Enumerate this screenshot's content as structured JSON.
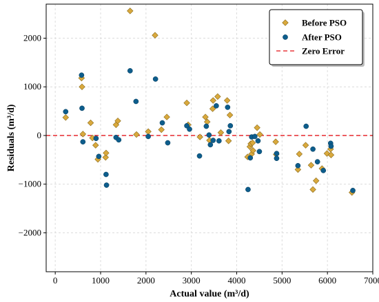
{
  "chart_data": {
    "type": "scatter",
    "title": "",
    "xlabel": "Actual value (m³/d)",
    "ylabel": "Residuals (m³/d)",
    "xlim": [
      -200,
      7000
    ],
    "ylim": [
      -2800,
      2700
    ],
    "xticks": [
      0,
      1000,
      2000,
      3000,
      4000,
      5000,
      6000,
      7000
    ],
    "yticks": [
      -2000,
      -1000,
      0,
      1000,
      2000
    ],
    "grid": true,
    "legend_position": "top-right",
    "colors": {
      "before": "#d9a93d",
      "before_edge": "#8a6a1a",
      "after": "#0d5d8c",
      "after_edge": "#073a58",
      "zero_line": "#e8383d"
    },
    "series": [
      {
        "name": "Before PSO",
        "marker": "diamond",
        "points": [
          [
            230,
            370
          ],
          [
            580,
            1180
          ],
          [
            590,
            1000
          ],
          [
            610,
            30
          ],
          [
            780,
            260
          ],
          [
            820,
            -50
          ],
          [
            890,
            -200
          ],
          [
            940,
            -490
          ],
          [
            1110,
            -450
          ],
          [
            1120,
            -360
          ],
          [
            1340,
            220
          ],
          [
            1380,
            300
          ],
          [
            1650,
            2560
          ],
          [
            1790,
            20
          ],
          [
            2050,
            80
          ],
          [
            2200,
            2060
          ],
          [
            2340,
            120
          ],
          [
            2460,
            380
          ],
          [
            2900,
            670
          ],
          [
            2930,
            220
          ],
          [
            3190,
            -30
          ],
          [
            3310,
            380
          ],
          [
            3350,
            280
          ],
          [
            3400,
            -100
          ],
          [
            3470,
            550
          ],
          [
            3480,
            720
          ],
          [
            3580,
            800
          ],
          [
            3650,
            60
          ],
          [
            3790,
            720
          ],
          [
            3820,
            -110
          ],
          [
            3850,
            420
          ],
          [
            4240,
            -440
          ],
          [
            4290,
            -230
          ],
          [
            4310,
            -170
          ],
          [
            4330,
            -380
          ],
          [
            4350,
            -150
          ],
          [
            4360,
            -310
          ],
          [
            4450,
            160
          ],
          [
            4510,
            20
          ],
          [
            4860,
            -130
          ],
          [
            4870,
            -390
          ],
          [
            5350,
            -700
          ],
          [
            5380,
            -380
          ],
          [
            5520,
            -200
          ],
          [
            5640,
            -610
          ],
          [
            5680,
            -1110
          ],
          [
            5750,
            -930
          ],
          [
            5880,
            -680
          ],
          [
            5990,
            -370
          ],
          [
            6070,
            -280
          ],
          [
            6080,
            -400
          ],
          [
            6540,
            -1170
          ]
        ]
      },
      {
        "name": "After PSO",
        "marker": "circle",
        "points": [
          [
            230,
            490
          ],
          [
            580,
            1240
          ],
          [
            590,
            560
          ],
          [
            610,
            -130
          ],
          [
            900,
            -60
          ],
          [
            960,
            -430
          ],
          [
            1120,
            -800
          ],
          [
            1130,
            -1020
          ],
          [
            1340,
            -40
          ],
          [
            1400,
            -90
          ],
          [
            1650,
            1330
          ],
          [
            1780,
            700
          ],
          [
            2050,
            -20
          ],
          [
            2210,
            1160
          ],
          [
            2360,
            260
          ],
          [
            2480,
            -150
          ],
          [
            2900,
            200
          ],
          [
            2960,
            130
          ],
          [
            3180,
            -420
          ],
          [
            3330,
            190
          ],
          [
            3390,
            10
          ],
          [
            3420,
            -190
          ],
          [
            3480,
            -100
          ],
          [
            3550,
            610
          ],
          [
            3610,
            -110
          ],
          [
            3800,
            580
          ],
          [
            3830,
            80
          ],
          [
            3860,
            200
          ],
          [
            4250,
            -1110
          ],
          [
            4300,
            -460
          ],
          [
            4330,
            -30
          ],
          [
            4400,
            -20
          ],
          [
            4470,
            -110
          ],
          [
            4500,
            -330
          ],
          [
            4880,
            -370
          ],
          [
            4880,
            -470
          ],
          [
            5350,
            -620
          ],
          [
            5530,
            190
          ],
          [
            5680,
            -280
          ],
          [
            5780,
            -540
          ],
          [
            5910,
            -720
          ],
          [
            6070,
            -160
          ],
          [
            6080,
            -220
          ],
          [
            6560,
            -1130
          ]
        ]
      }
    ],
    "reference_line": {
      "name": "Zero Error",
      "y": 0,
      "style": "dashed"
    }
  }
}
